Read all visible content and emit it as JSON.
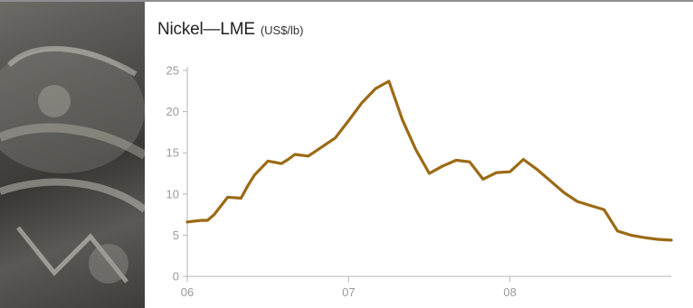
{
  "header": {
    "title": "Nickel—LME",
    "unit": "(US$/lb)"
  },
  "colors": {
    "line": "#9b6a15",
    "axis": "#b5b5b5",
    "tick_text": "#9a9a9a",
    "top_rule": "#8e8e8e"
  },
  "chart_data": {
    "type": "line",
    "title": "Nickel—LME",
    "subtitle": "(US$/lb)",
    "xlabel": "",
    "ylabel": "",
    "ylim": [
      0,
      25
    ],
    "xlim": [
      0,
      36
    ],
    "grid": false,
    "y_ticks": [
      0,
      5,
      10,
      15,
      20,
      25
    ],
    "x_tick_positions": [
      0,
      12,
      24
    ],
    "x_tick_labels": [
      "06",
      "07",
      "08"
    ],
    "series": [
      {
        "x": [
          0,
          0.5,
          1,
          1.5,
          2,
          3,
          4,
          4.5,
          5,
          6,
          7,
          7.5,
          8,
          9,
          10,
          11,
          12,
          13,
          14,
          15,
          16,
          17,
          18,
          19,
          20,
          21,
          22,
          23,
          24,
          25,
          26,
          27,
          28,
          29,
          30,
          31,
          32,
          33,
          34,
          35,
          36
        ],
        "values": [
          6.6,
          6.7,
          6.8,
          6.8,
          7.5,
          9.6,
          9.5,
          11.0,
          12.3,
          14.0,
          13.7,
          14.2,
          14.8,
          14.6,
          15.7,
          16.8,
          18.9,
          21.1,
          22.8,
          23.7,
          19.0,
          15.4,
          12.5,
          13.4,
          14.1,
          13.9,
          11.8,
          12.6,
          12.7,
          14.2,
          13.0,
          11.6,
          10.2,
          9.1,
          8.6,
          8.1,
          5.5,
          5.0,
          4.7,
          4.5,
          4.4
        ]
      }
    ]
  }
}
